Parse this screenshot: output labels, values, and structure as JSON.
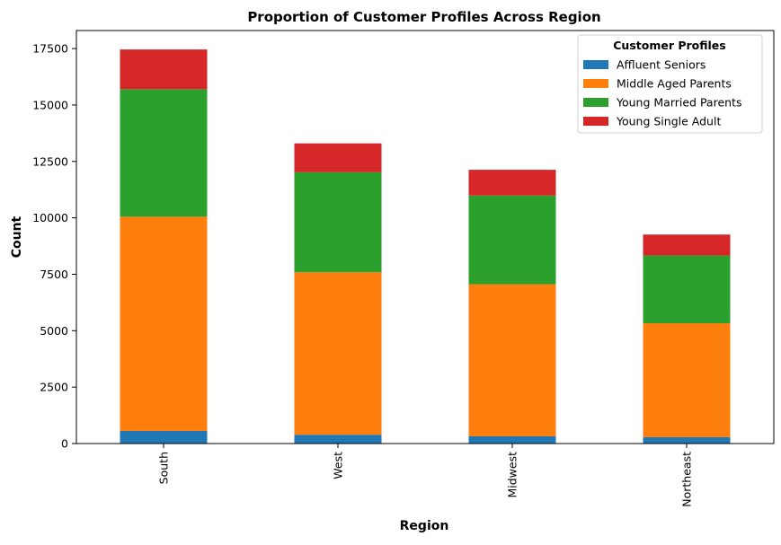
{
  "chart_data": {
    "type": "bar",
    "stacked": true,
    "title": "Proportion of Customer Profiles Across Region",
    "xlabel": "Region",
    "ylabel": "Count",
    "categories": [
      "South",
      "West",
      "Midwest",
      "Northeast"
    ],
    "series": [
      {
        "name": "Affluent Seniors",
        "color": "#1f77b4",
        "values": [
          560,
          390,
          320,
          280
        ]
      },
      {
        "name": "Middle Aged Parents",
        "color": "#ff7f0e",
        "values": [
          9490,
          7200,
          6740,
          5050
        ]
      },
      {
        "name": "Young Married Parents",
        "color": "#2ca02c",
        "values": [
          5650,
          4430,
          3930,
          3000
        ]
      },
      {
        "name": "Young Single Adult",
        "color": "#d62728",
        "values": [
          1760,
          1280,
          1140,
          930
        ]
      }
    ],
    "ylim": [
      0,
      18300
    ],
    "yticks": [
      0,
      2500,
      5000,
      7500,
      10000,
      12500,
      15000,
      17500
    ],
    "legend": {
      "title": "Customer Profiles",
      "position": "top-right"
    },
    "grid": false
  }
}
